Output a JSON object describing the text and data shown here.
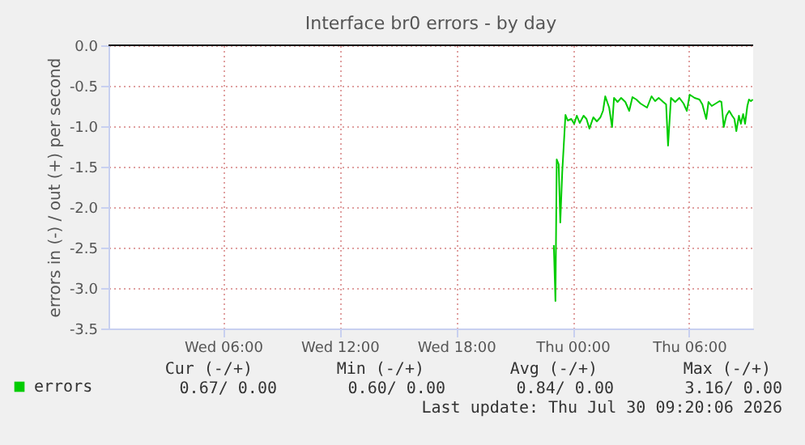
{
  "chart_data": {
    "type": "line",
    "title": "Interface br0 errors - by day",
    "ylabel": "errors in (-) / out (+) per second",
    "xlim": [
      "2026-07-29T00:06",
      "2026-07-30T09:18"
    ],
    "xticks": [
      {
        "value": "2026-07-29T06:00",
        "label": "Wed 06:00"
      },
      {
        "value": "2026-07-29T12:00",
        "label": "Wed 12:00"
      },
      {
        "value": "2026-07-29T18:00",
        "label": "Wed 18:00"
      },
      {
        "value": "2026-07-30T00:00",
        "label": "Thu 00:00"
      },
      {
        "value": "2026-07-30T06:00",
        "label": "Thu 06:00"
      }
    ],
    "ylim": [
      -3.5,
      0
    ],
    "yticks": [
      {
        "value": 0,
        "label": "0.0"
      },
      -0.5,
      {
        "value": -1,
        "label": "-1.0"
      },
      -1.5,
      {
        "value": -2,
        "label": "-2.0"
      },
      -2.5,
      {
        "value": -3,
        "label": "-3.0"
      },
      -3.5
    ],
    "grid": true,
    "legend": "bottom left",
    "ref_lines": [
      {
        "axis": "y",
        "value": 0,
        "color": "#000000"
      }
    ],
    "series": [
      {
        "name": "errors",
        "color": "#00cc00",
        "x": [
          "2026-07-29T23:02",
          "2026-07-29T23:07",
          "2026-07-29T23:11",
          "2026-07-29T23:17",
          "2026-07-29T23:22",
          "2026-07-29T23:28",
          "2026-07-29T23:38",
          "2026-07-29T23:45",
          "2026-07-29T23:56",
          "2026-07-30T00:05",
          "2026-07-30T00:13",
          "2026-07-30T00:22",
          "2026-07-30T00:34",
          "2026-07-30T00:43",
          "2026-07-30T00:52",
          "2026-07-30T01:04",
          "2026-07-30T01:15",
          "2026-07-30T01:26",
          "2026-07-30T01:34",
          "2026-07-30T01:41",
          "2026-07-30T01:53",
          "2026-07-30T02:02",
          "2026-07-30T02:08",
          "2026-07-30T02:19",
          "2026-07-30T02:30",
          "2026-07-30T02:43",
          "2026-07-30T02:55",
          "2026-07-30T03:05",
          "2026-07-30T03:17",
          "2026-07-30T03:30",
          "2026-07-30T03:50",
          "2026-07-30T04:04",
          "2026-07-30T04:15",
          "2026-07-30T04:26",
          "2026-07-30T04:40",
          "2026-07-30T04:49",
          "2026-07-30T04:55",
          "2026-07-30T05:04",
          "2026-07-30T05:17",
          "2026-07-30T05:30",
          "2026-07-30T05:43",
          "2026-07-30T05:53",
          "2026-07-30T06:02",
          "2026-07-30T06:17",
          "2026-07-30T06:32",
          "2026-07-30T06:41",
          "2026-07-30T06:53",
          "2026-07-30T07:00",
          "2026-07-30T07:10",
          "2026-07-30T07:22",
          "2026-07-30T07:34",
          "2026-07-30T07:40",
          "2026-07-30T07:47",
          "2026-07-30T07:55",
          "2026-07-30T08:04",
          "2026-07-30T08:13",
          "2026-07-30T08:20",
          "2026-07-30T08:26",
          "2026-07-30T08:34",
          "2026-07-30T08:40",
          "2026-07-30T08:47",
          "2026-07-30T08:53",
          "2026-07-30T09:00",
          "2026-07-30T09:05",
          "2026-07-30T09:11",
          "2026-07-30T09:17"
        ],
        "values": [
          -2.47,
          -3.16,
          -1.41,
          -1.47,
          -2.19,
          -1.57,
          -0.86,
          -0.93,
          -0.91,
          -0.97,
          -0.87,
          -0.96,
          -0.87,
          -0.91,
          -1.03,
          -0.89,
          -0.94,
          -0.89,
          -0.81,
          -0.63,
          -0.77,
          -1.01,
          -0.65,
          -0.7,
          -0.65,
          -0.7,
          -0.81,
          -0.64,
          -0.67,
          -0.72,
          -0.77,
          -0.63,
          -0.69,
          -0.65,
          -0.7,
          -0.73,
          -1.24,
          -0.65,
          -0.7,
          -0.65,
          -0.72,
          -0.81,
          -0.61,
          -0.65,
          -0.67,
          -0.73,
          -0.91,
          -0.7,
          -0.75,
          -0.72,
          -0.69,
          -0.7,
          -1.01,
          -0.87,
          -0.81,
          -0.87,
          -0.91,
          -1.06,
          -0.87,
          -0.97,
          -0.85,
          -0.97,
          -0.75,
          -0.67,
          -0.69,
          -0.67
        ]
      }
    ],
    "annotations": [
      "Cur (-/+)",
      "Min (-/+)",
      "Avg (-/+)",
      "Max (-/+)",
      "0.67/   0.00",
      "0.60/   0.00",
      "0.84/   0.00",
      "3.16/   0.00",
      "Last update: Thu Jul 30 09:20:06 2026"
    ]
  }
}
